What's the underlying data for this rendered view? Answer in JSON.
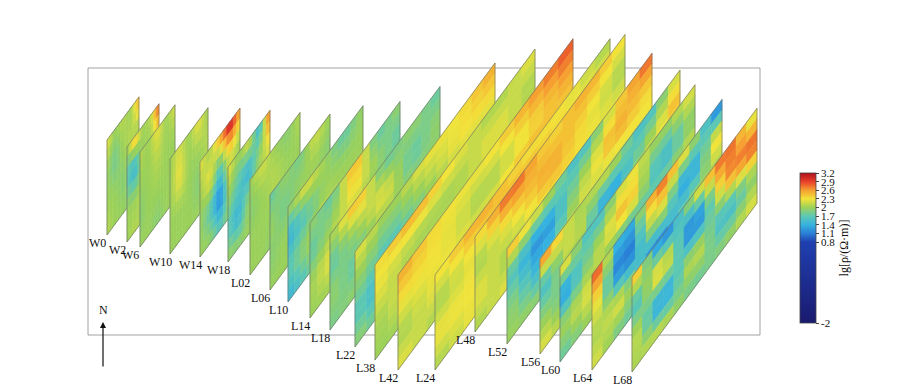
{
  "chart_data": {
    "type": "fence_diagram",
    "north_label": "N",
    "colorbar": {
      "title": "lg[ρ/(Ω·m)]",
      "range": [
        -2,
        3.2
      ],
      "ticks": [
        -2,
        0.8,
        1.1,
        1.4,
        1.7,
        2,
        2.3,
        2.6,
        2.9,
        3.2
      ]
    },
    "profiles": [
      {
        "name": "W0",
        "values": [
          [
            2.3,
            2.0,
            2.1,
            2.0,
            2.6
          ],
          [
            2.0,
            1.8,
            2.0,
            2.1,
            2.0
          ],
          [
            2.0,
            2.0,
            1.9,
            2.0,
            2.0
          ],
          [
            2.1,
            2.0,
            2.0,
            1.9,
            2.0
          ]
        ]
      },
      {
        "name": "W2",
        "values": [
          [
            2.0,
            2.6,
            2.0,
            2.1,
            2.9
          ],
          [
            1.7,
            1.4,
            2.0,
            2.0,
            2.2
          ],
          [
            2.0,
            2.0,
            2.1,
            2.0,
            2.0
          ],
          [
            2.0,
            2.1,
            2.0,
            2.0,
            1.9
          ]
        ]
      },
      {
        "name": "W6",
        "values": [
          [
            2.1,
            2.0,
            2.3,
            2.0,
            2.2
          ],
          [
            2.0,
            2.0,
            2.1,
            2.0,
            2.0
          ],
          [
            1.9,
            2.0,
            2.0,
            2.0,
            2.0
          ],
          [
            2.0,
            2.0,
            1.9,
            2.0,
            2.0
          ]
        ]
      },
      {
        "name": "W10",
        "values": [
          [
            2.0,
            2.2,
            2.0,
            2.3,
            2.0
          ],
          [
            2.0,
            2.3,
            2.0,
            2.0,
            2.1
          ],
          [
            2.0,
            2.0,
            2.0,
            1.9,
            2.0
          ],
          [
            2.0,
            2.0,
            2.0,
            2.0,
            2.0
          ]
        ]
      },
      {
        "name": "W14",
        "values": [
          [
            2.3,
            2.0,
            2.6,
            3.2,
            2.6
          ],
          [
            2.0,
            2.3,
            1.7,
            2.3,
            2.0
          ],
          [
            2.0,
            1.7,
            1.1,
            2.0,
            2.0
          ],
          [
            2.0,
            2.0,
            1.7,
            2.0,
            2.0
          ]
        ]
      },
      {
        "name": "W18",
        "values": [
          [
            2.3,
            2.0,
            2.3,
            1.4,
            2.9
          ],
          [
            2.0,
            1.7,
            1.4,
            2.0,
            2.3
          ],
          [
            1.7,
            1.4,
            2.0,
            2.0,
            2.0
          ],
          [
            2.0,
            2.0,
            2.0,
            2.0,
            2.0
          ]
        ]
      },
      {
        "name": "L02",
        "values": [
          [
            2.0,
            2.2,
            2.0,
            1.9,
            2.1
          ],
          [
            1.9,
            2.0,
            2.1,
            2.0,
            2.0
          ],
          [
            2.0,
            2.0,
            2.0,
            2.0,
            2.0
          ],
          [
            2.0,
            2.0,
            1.9,
            2.0,
            2.0
          ]
        ]
      },
      {
        "name": "L06",
        "values": [
          [
            1.7,
            2.0,
            1.8,
            2.2,
            2.0
          ],
          [
            2.0,
            1.8,
            2.0,
            2.0,
            1.9
          ],
          [
            1.9,
            2.0,
            2.0,
            2.0,
            2.0
          ],
          [
            2.0,
            2.0,
            2.0,
            2.0,
            2.0
          ]
        ]
      },
      {
        "name": "L10",
        "values": [
          [
            2.0,
            2.3,
            2.0,
            1.7,
            2.0
          ],
          [
            1.4,
            1.7,
            2.0,
            2.0,
            2.0
          ],
          [
            1.7,
            2.0,
            2.2,
            2.0,
            2.0
          ],
          [
            1.4,
            1.7,
            2.0,
            2.0,
            2.0
          ]
        ]
      },
      {
        "name": "L14",
        "values": [
          [
            2.0,
            1.7,
            2.6,
            1.7,
            2.0
          ],
          [
            1.7,
            2.0,
            2.3,
            2.0,
            1.7
          ],
          [
            2.0,
            2.3,
            2.0,
            1.7,
            2.0
          ],
          [
            2.0,
            2.0,
            2.0,
            2.0,
            2.0
          ]
        ]
      },
      {
        "name": "L18",
        "values": [
          [
            2.0,
            2.6,
            1.7,
            2.0,
            1.7
          ],
          [
            1.7,
            2.0,
            2.3,
            1.7,
            2.0
          ],
          [
            2.0,
            1.7,
            2.0,
            2.0,
            1.9
          ],
          [
            1.8,
            2.0,
            2.0,
            1.9,
            2.0
          ]
        ]
      },
      {
        "name": "L22",
        "values": [
          [
            2.3,
            2.0,
            2.3,
            2.3,
            2.6
          ],
          [
            2.0,
            1.7,
            2.0,
            2.3,
            2.3
          ],
          [
            1.7,
            1.4,
            1.7,
            2.0,
            2.0
          ],
          [
            2.0,
            1.7,
            2.0,
            2.0,
            1.7
          ]
        ]
      },
      {
        "name": "L38",
        "values": [
          [
            2.3,
            2.6,
            2.3,
            2.0,
            2.3
          ],
          [
            2.3,
            2.0,
            2.0,
            2.3,
            2.0
          ],
          [
            2.0,
            2.3,
            2.3,
            2.0,
            2.3
          ],
          [
            2.0,
            2.0,
            2.3,
            2.3,
            2.0
          ]
        ]
      },
      {
        "name": "L42",
        "values": [
          [
            2.6,
            2.3,
            2.3,
            2.6,
            2.9
          ],
          [
            2.3,
            2.3,
            2.0,
            2.3,
            2.6
          ],
          [
            2.0,
            2.3,
            2.3,
            2.6,
            2.3
          ],
          [
            2.3,
            2.0,
            2.3,
            2.3,
            2.3
          ]
        ]
      },
      {
        "name": "L24",
        "values": [
          [
            2.3,
            2.6,
            2.3,
            2.3,
            2.0
          ],
          [
            2.0,
            2.3,
            2.6,
            2.3,
            2.3
          ],
          [
            2.3,
            2.3,
            2.0,
            2.3,
            2.0
          ],
          [
            2.0,
            2.3,
            2.3,
            2.0,
            2.0
          ]
        ]
      },
      {
        "name": "L48",
        "values": [
          [
            2.3,
            2.9,
            2.3,
            2.6,
            2.3
          ],
          [
            2.0,
            2.3,
            2.6,
            2.3,
            2.0
          ],
          [
            2.3,
            2.0,
            2.3,
            2.3,
            2.3
          ],
          [
            2.0,
            2.3,
            2.0,
            2.3,
            2.0
          ]
        ]
      },
      {
        "name": "L52",
        "values": [
          [
            2.6,
            2.3,
            1.4,
            2.3,
            2.9
          ],
          [
            1.7,
            1.1,
            2.0,
            2.6,
            2.3
          ],
          [
            2.0,
            1.4,
            2.3,
            2.0,
            2.3
          ],
          [
            2.0,
            2.0,
            1.7,
            2.0,
            2.0
          ]
        ]
      },
      {
        "name": "L56",
        "values": [
          [
            2.9,
            2.0,
            2.3,
            1.4,
            2.3
          ],
          [
            1.4,
            2.3,
            1.1,
            2.0,
            2.6
          ],
          [
            2.0,
            1.7,
            2.0,
            2.3,
            2.0
          ],
          [
            2.3,
            2.0,
            1.7,
            2.0,
            2.0
          ]
        ]
      },
      {
        "name": "L60",
        "values": [
          [
            2.6,
            1.4,
            2.3,
            2.0,
            2.3
          ],
          [
            1.1,
            2.0,
            2.6,
            1.4,
            2.0
          ],
          [
            2.0,
            2.3,
            1.1,
            2.0,
            2.3
          ],
          [
            1.7,
            2.0,
            2.0,
            2.3,
            2.0
          ]
        ]
      },
      {
        "name": "L64",
        "values": [
          [
            3.2,
            1.1,
            2.9,
            2.3,
            0.8
          ],
          [
            2.6,
            0.8,
            2.3,
            1.1,
            2.6
          ],
          [
            2.0,
            2.3,
            0.8,
            2.0,
            2.0
          ],
          [
            2.3,
            1.7,
            2.0,
            2.3,
            1.7
          ]
        ]
      },
      {
        "name": "L68",
        "values": [
          [
            2.9,
            0.8,
            2.3,
            2.9,
            2.0
          ],
          [
            1.4,
            2.6,
            0.8,
            2.6,
            2.9
          ],
          [
            2.3,
            1.1,
            2.3,
            1.4,
            2.0
          ],
          [
            2.0,
            2.3,
            1.7,
            2.0,
            2.3
          ]
        ]
      }
    ]
  }
}
